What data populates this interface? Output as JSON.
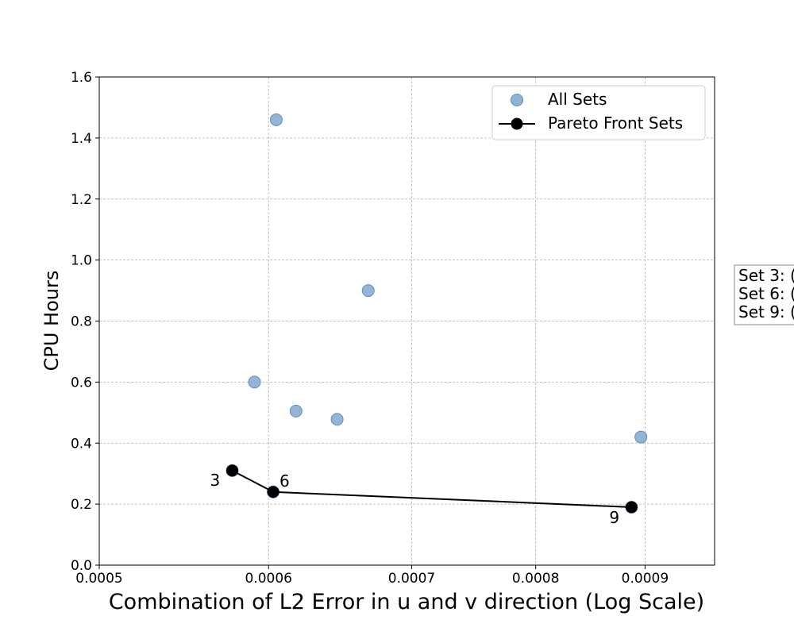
{
  "chart_data": {
    "type": "scatter",
    "xlabel": "Combination of L2 Error in u and v direction (Log Scale)",
    "ylabel": "CPU Hours",
    "xscale": "log",
    "xlim": [
      0.0005,
      0.00097
    ],
    "ylim": [
      0,
      1.6
    ],
    "x_ticks": [
      "0.0005",
      "0.0006",
      "0.0007",
      "0.0008",
      "0.0009"
    ],
    "y_ticks": [
      "0.0",
      "0.2",
      "0.4",
      "0.6",
      "0.8",
      "1.0",
      "1.2",
      "1.4",
      "1.6"
    ],
    "grid": true,
    "legend_position": "top-right",
    "series": [
      {
        "name": "All Sets",
        "color": "#7aa3cc",
        "points": [
          {
            "x": 0.000577,
            "y": 0.31
          },
          {
            "x": 0.000591,
            "y": 0.6
          },
          {
            "x": 0.000603,
            "y": 0.24
          },
          {
            "x": 0.000605,
            "y": 1.46
          },
          {
            "x": 0.000618,
            "y": 0.505
          },
          {
            "x": 0.000646,
            "y": 0.478
          },
          {
            "x": 0.000668,
            "y": 0.9
          },
          {
            "x": 0.000887,
            "y": 0.19
          },
          {
            "x": 0.000896,
            "y": 0.42
          }
        ]
      },
      {
        "name": "Pareto Front Sets",
        "color": "#000000",
        "points": [
          {
            "x": 0.000577,
            "y": 0.31,
            "label": "3"
          },
          {
            "x": 0.000603,
            "y": 0.24,
            "label": "6"
          },
          {
            "x": 0.000887,
            "y": 0.19,
            "label": "9"
          }
        ]
      }
    ],
    "side_note": [
      "Set 3: (",
      "Set 6: (",
      "Set 9: ("
    ]
  }
}
